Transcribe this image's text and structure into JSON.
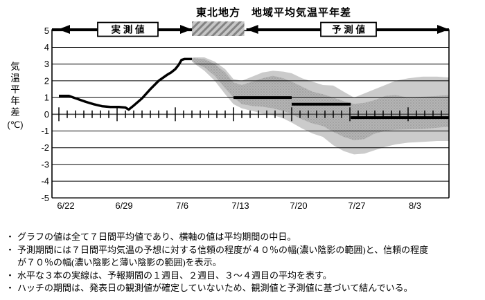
{
  "title": "東北地方　地域平均気温平年差",
  "banner": {
    "observed_label": "実 測 値",
    "forecast_label": "予 測 値"
  },
  "y_axis": {
    "title_chars": [
      "気",
      "温",
      "平",
      "年",
      "差"
    ],
    "unit": "(℃)",
    "tick_labels": [
      "5",
      "4",
      "3",
      "2",
      "1",
      "0",
      "-1",
      "-2",
      "-3",
      "-4",
      "-5"
    ]
  },
  "footnote_bullet": "・",
  "footnotes": [
    "グラフの値は全て７日間平均値であり、横軸の値は平均期間の中日。",
    "予測期間には７日間平均気温の予想に対する信頼の程度が４０％の幅(濃い陰影の範囲)と、信頼の程度が７０％の幅(濃い陰影と薄い陰影の範囲)を表示。",
    "水平な３本の実線は、予報期間の１週目、２週目、３～４週目の平均を表す。",
    "ハッチの期間は、発表日の観測値が確定していないため、観測値と予測値に基づいて結んでいる。"
  ],
  "chart_data": {
    "type": "line",
    "title": "東北地方　地域平均気温平年差",
    "ylabel": "気温平年差(℃)",
    "xlabel": "",
    "ylim": [
      -5,
      5
    ],
    "grid": true,
    "legend_position": "top-banner",
    "x_unit": "days_since_6/22",
    "x_total_days": 46.9,
    "x_tick_labels": [
      "6/22",
      "6/29",
      "7/6",
      "7/13",
      "7/20",
      "7/27",
      "8/3"
    ],
    "x_tick_days": [
      0,
      7,
      14,
      21,
      28,
      35,
      42
    ],
    "y_ticks": [
      5,
      4,
      3,
      2,
      1,
      0,
      -1,
      -2,
      -3,
      -4,
      -5
    ],
    "observed_series": {
      "name": "実測値（7日間平均気温平年差）",
      "points": [
        [
          0,
          1.1
        ],
        [
          1.2,
          1.1
        ],
        [
          2.2,
          0.92
        ],
        [
          3.2,
          0.75
        ],
        [
          4.2,
          0.6
        ],
        [
          5.2,
          0.48
        ],
        [
          6.2,
          0.44
        ],
        [
          7.2,
          0.44
        ],
        [
          8,
          0.4
        ],
        [
          8.4,
          0.28
        ],
        [
          9,
          0.52
        ],
        [
          10,
          0.95
        ],
        [
          11,
          1.5
        ],
        [
          12,
          2.0
        ],
        [
          13,
          2.35
        ],
        [
          13.5,
          2.5
        ],
        [
          14,
          2.7
        ],
        [
          14.4,
          2.95
        ],
        [
          14.75,
          3.25
        ],
        [
          15.1,
          3.3
        ],
        [
          16,
          3.3
        ]
      ]
    },
    "confidence_band_40": {
      "name": "信頼の程度４０％の幅（濃い陰影）",
      "upper": [
        [
          16,
          3.35
        ],
        [
          16.25,
          3.35
        ],
        [
          17.5,
          3.3
        ],
        [
          18.75,
          3.0
        ],
        [
          20,
          2.5
        ],
        [
          21,
          1.9
        ],
        [
          22,
          1.75
        ],
        [
          23.25,
          1.95
        ],
        [
          24.5,
          2.15
        ],
        [
          25.75,
          2.3
        ],
        [
          27,
          2.15
        ],
        [
          28,
          1.95
        ],
        [
          29.25,
          1.65
        ],
        [
          30.5,
          1.35
        ],
        [
          31.75,
          1.2
        ],
        [
          33,
          1.0
        ],
        [
          34.25,
          0.78
        ],
        [
          35.5,
          0.62
        ],
        [
          36.75,
          0.68
        ],
        [
          38,
          0.85
        ],
        [
          39.25,
          1.1
        ],
        [
          40.5,
          1.15
        ],
        [
          42,
          1.0
        ],
        [
          43.75,
          1.05
        ],
        [
          45.5,
          1.1
        ],
        [
          46.9,
          1.15
        ]
      ],
      "lower": [
        [
          16,
          3.2
        ],
        [
          16.25,
          3.1
        ],
        [
          17.5,
          2.8
        ],
        [
          18.75,
          2.3
        ],
        [
          20,
          1.55
        ],
        [
          21,
          1.0
        ],
        [
          22,
          0.6
        ],
        [
          23.25,
          0.5
        ],
        [
          24.5,
          0.45
        ],
        [
          25.75,
          0.35
        ],
        [
          27,
          0.2
        ],
        [
          28,
          0.0
        ],
        [
          29.25,
          -0.3
        ],
        [
          30.5,
          -0.55
        ],
        [
          31.75,
          -0.7
        ],
        [
          33,
          -1.05
        ],
        [
          34.25,
          -1.35
        ],
        [
          35.5,
          -1.55
        ],
        [
          36.75,
          -1.48
        ],
        [
          38,
          -1.15
        ],
        [
          39.25,
          -1.0
        ],
        [
          40.5,
          -0.92
        ],
        [
          42,
          -0.9
        ],
        [
          43.75,
          -0.88
        ],
        [
          45.5,
          -0.8
        ],
        [
          46.9,
          -0.75
        ]
      ]
    },
    "confidence_band_70": {
      "name": "信頼の程度７０％の幅（濃い陰影と薄い陰影）",
      "upper": [
        [
          16,
          3.38
        ],
        [
          16.25,
          3.4
        ],
        [
          17.5,
          3.4
        ],
        [
          18.75,
          3.15
        ],
        [
          20,
          2.7
        ],
        [
          21,
          2.1
        ],
        [
          22,
          2.0
        ],
        [
          23.25,
          2.25
        ],
        [
          24.5,
          2.5
        ],
        [
          25.75,
          2.6
        ],
        [
          27,
          2.55
        ],
        [
          28,
          2.45
        ],
        [
          29.25,
          2.15
        ],
        [
          30.5,
          1.95
        ],
        [
          31.75,
          1.75
        ],
        [
          33,
          1.72
        ],
        [
          34.25,
          1.35
        ],
        [
          35.5,
          1.0
        ],
        [
          36.75,
          1.25
        ],
        [
          38,
          1.5
        ],
        [
          39.25,
          1.75
        ],
        [
          40.5,
          2.0
        ],
        [
          42,
          2.15
        ],
        [
          43.75,
          2.25
        ],
        [
          45.5,
          2.25
        ],
        [
          46.9,
          2.2
        ]
      ],
      "lower": [
        [
          16,
          3.15
        ],
        [
          16.25,
          3.05
        ],
        [
          17.5,
          2.6
        ],
        [
          18.75,
          2.0
        ],
        [
          20,
          1.2
        ],
        [
          21,
          0.6
        ],
        [
          22,
          0.35
        ],
        [
          23.25,
          0.2
        ],
        [
          24.5,
          0.05
        ],
        [
          25.75,
          -0.05
        ],
        [
          27,
          -0.25
        ],
        [
          28,
          -0.5
        ],
        [
          29.25,
          -0.85
        ],
        [
          30.5,
          -1.15
        ],
        [
          31.75,
          -1.35
        ],
        [
          33,
          -1.85
        ],
        [
          34.25,
          -2.2
        ],
        [
          35.5,
          -2.4
        ],
        [
          36.75,
          -2.35
        ],
        [
          38,
          -2.15
        ],
        [
          39.25,
          -1.95
        ],
        [
          40.5,
          -1.8
        ],
        [
          42,
          -1.7
        ],
        [
          43.75,
          -1.65
        ],
        [
          45.5,
          -1.6
        ],
        [
          46.9,
          -1.6
        ]
      ]
    },
    "week_means": [
      {
        "name": "１週目平均",
        "start_day": 21,
        "end_day": 28,
        "value": 1.0
      },
      {
        "name": "２週目平均",
        "start_day": 28,
        "end_day": 35.1,
        "value": 0.6
      },
      {
        "name": "３～４週目平均",
        "start_day": 35.1,
        "end_day": 46.9,
        "value": -0.2
      }
    ],
    "hatch_period": {
      "start_day": 16,
      "end_day": 22.3
    }
  }
}
